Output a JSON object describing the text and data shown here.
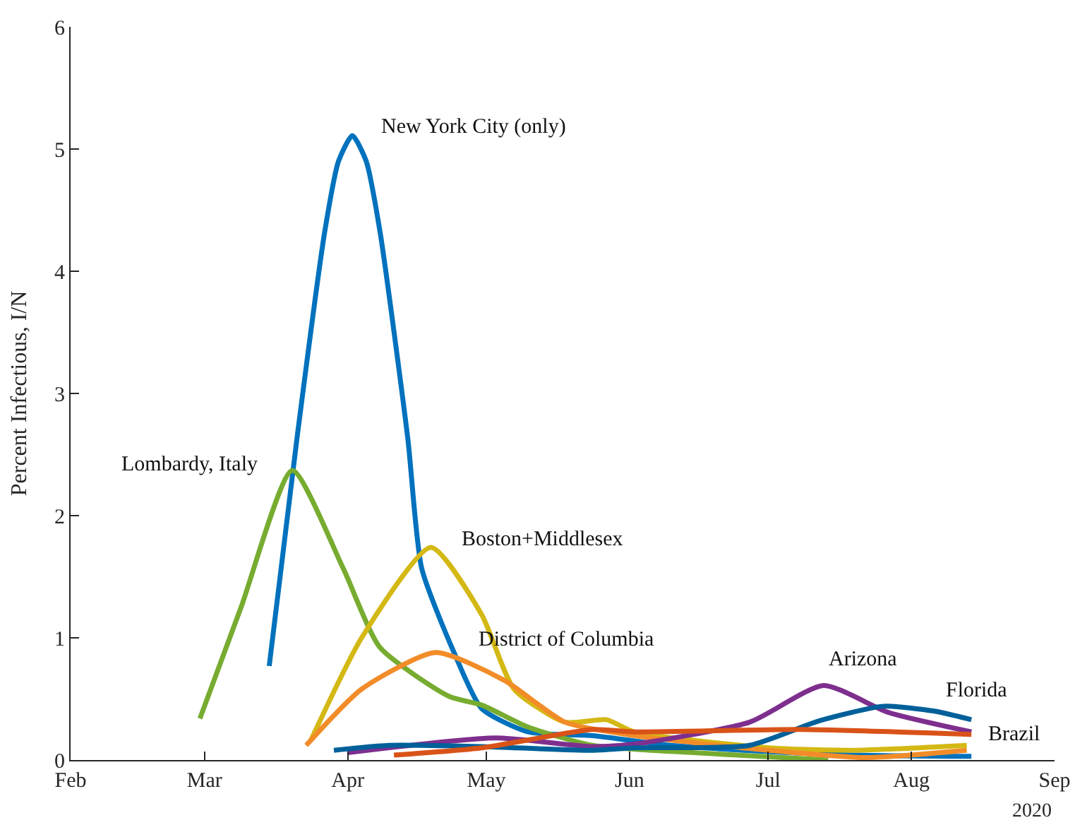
{
  "chart_data": {
    "type": "line",
    "ylabel": "Percent Infectious, I/N",
    "xlim": [
      "2020-02-01",
      "2020-09-01"
    ],
    "xticks": [
      {
        "value": "2020-02-01",
        "label": "Feb"
      },
      {
        "value": "2020-03-01",
        "label": "Mar"
      },
      {
        "value": "2020-04-01",
        "label": "Apr"
      },
      {
        "value": "2020-05-01",
        "label": "May"
      },
      {
        "value": "2020-06-01",
        "label": "Jun"
      },
      {
        "value": "2020-07-01",
        "label": "Jul"
      },
      {
        "value": "2020-08-01",
        "label": "Aug"
      },
      {
        "value": "2020-09-01",
        "label": "Sep"
      }
    ],
    "ylim": [
      0,
      6
    ],
    "yticks": [
      0,
      1,
      2,
      3,
      4,
      5,
      6
    ],
    "legend": false,
    "marker": "none",
    "line_style": "solid",
    "series": [
      {
        "name": "New York City (only)",
        "color": "#0072bd",
        "x": [
          "2020-03-15",
          "2020-03-21",
          "2020-03-27",
          "2020-03-30",
          "2020-04-02",
          "2020-04-05",
          "2020-04-08",
          "2020-04-14",
          "2020-04-17",
          "2020-04-24",
          "2020-04-30",
          "2020-05-10",
          "2020-05-24",
          "2020-06-10",
          "2020-07-01",
          "2020-07-20",
          "2020-08-14"
        ],
        "values": [
          0.77,
          2.63,
          4.32,
          4.9,
          5.11,
          4.9,
          4.32,
          2.63,
          1.57,
          0.88,
          0.42,
          0.23,
          0.2,
          0.12,
          0.07,
          0.04,
          0.03
        ]
      },
      {
        "name": "Lombardy, Italy",
        "color": "#77ac30",
        "x": [
          "2020-02-29",
          "2020-03-09",
          "2020-03-20",
          "2020-03-31",
          "2020-04-08",
          "2020-04-23",
          "2020-04-30",
          "2020-05-10",
          "2020-05-24",
          "2020-06-15",
          "2020-07-14"
        ],
        "values": [
          0.34,
          1.26,
          2.37,
          1.57,
          0.92,
          0.52,
          0.45,
          0.27,
          0.12,
          0.06,
          0.0
        ]
      },
      {
        "name": "Boston+Middlesex",
        "color": "#d4b814",
        "x": [
          "2020-03-24",
          "2020-04-04",
          "2020-04-19",
          "2020-04-30",
          "2020-05-07",
          "2020-05-18",
          "2020-05-27",
          "2020-06-02",
          "2020-07-01",
          "2020-07-20",
          "2020-08-13"
        ],
        "values": [
          0.16,
          1.0,
          1.74,
          1.19,
          0.58,
          0.31,
          0.33,
          0.23,
          0.1,
          0.08,
          0.12
        ]
      },
      {
        "name": "District of Columbia",
        "color": "#f28c28",
        "x": [
          "2020-03-23",
          "2020-04-04",
          "2020-04-20",
          "2020-05-05",
          "2020-05-18",
          "2020-06-02",
          "2020-07-01",
          "2020-07-22",
          "2020-08-13"
        ],
        "values": [
          0.12,
          0.58,
          0.88,
          0.65,
          0.31,
          0.2,
          0.08,
          0.02,
          0.08
        ]
      },
      {
        "name": "Arizona",
        "color": "#7e2f8e",
        "x": [
          "2020-04-01",
          "2020-05-03",
          "2020-05-24",
          "2020-06-02",
          "2020-06-27",
          "2020-07-13",
          "2020-07-27",
          "2020-08-14"
        ],
        "values": [
          0.06,
          0.18,
          0.11,
          0.13,
          0.31,
          0.61,
          0.39,
          0.23
        ]
      },
      {
        "name": "Florida",
        "color": "#00609a",
        "x": [
          "2020-03-29",
          "2020-04-10",
          "2020-04-30",
          "2020-05-24",
          "2020-06-02",
          "2020-06-27",
          "2020-07-12",
          "2020-07-26",
          "2020-08-06",
          "2020-08-14"
        ],
        "values": [
          0.08,
          0.12,
          0.11,
          0.08,
          0.1,
          0.12,
          0.32,
          0.44,
          0.4,
          0.33
        ]
      },
      {
        "name": "Brazil",
        "color": "#d95319",
        "x": [
          "2020-04-11",
          "2020-04-30",
          "2020-05-24",
          "2020-06-02",
          "2020-07-08",
          "2020-08-14"
        ],
        "values": [
          0.04,
          0.1,
          0.25,
          0.23,
          0.25,
          0.21
        ]
      }
    ],
    "annotations": [
      "2020"
    ]
  }
}
